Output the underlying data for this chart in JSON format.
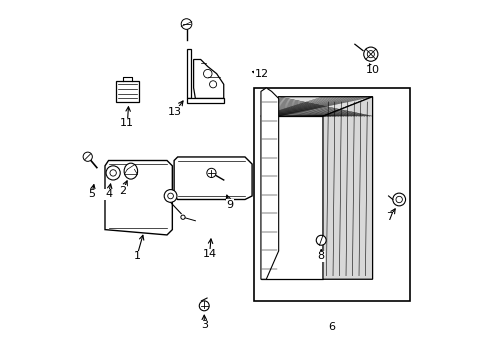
{
  "background_color": "#ffffff",
  "line_color": "#000000",
  "label_positions": {
    "1": [
      0.185,
      0.295,
      0.21,
      0.36
    ],
    "2": [
      0.155,
      0.47,
      0.17,
      0.515
    ],
    "3": [
      0.385,
      0.09,
      0.385,
      0.135
    ],
    "4": [
      0.115,
      0.465,
      0.125,
      0.505
    ],
    "5": [
      0.072,
      0.465,
      0.082,
      0.5
    ],
    "6": [
      0.755,
      0.085,
      0.755,
      0.085
    ],
    "7": [
      0.905,
      0.4,
      0.89,
      0.435
    ],
    "8": [
      0.72,
      0.29,
      0.725,
      0.325
    ],
    "9": [
      0.455,
      0.435,
      0.44,
      0.47
    ],
    "10": [
      0.865,
      0.815,
      0.845,
      0.845
    ],
    "11": [
      0.165,
      0.665,
      0.175,
      0.705
    ],
    "12": [
      0.545,
      0.8,
      0.505,
      0.805
    ],
    "13": [
      0.305,
      0.695,
      0.325,
      0.71
    ],
    "14": [
      0.395,
      0.295,
      0.405,
      0.345
    ]
  }
}
